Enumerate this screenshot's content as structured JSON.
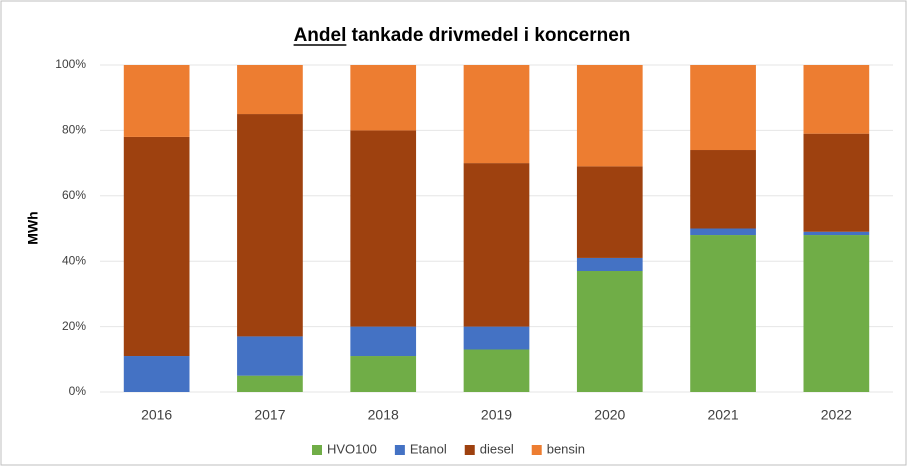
{
  "chart_data": {
    "type": "stacked_bar",
    "title": "Andel tankade drivmedel i koncernen",
    "y_label": "MWh",
    "categories": [
      "2016",
      "2017",
      "2018",
      "2019",
      "2020",
      "2021",
      "2022"
    ],
    "series": [
      {
        "name": "HVO100",
        "color": "#70ad47",
        "values": [
          0,
          5,
          11,
          13,
          37,
          48,
          48
        ]
      },
      {
        "name": "Etanol",
        "color": "#4472c4",
        "values": [
          11,
          12,
          9,
          7,
          4,
          2,
          1
        ]
      },
      {
        "name": "diesel",
        "color": "#9e410f",
        "values": [
          67,
          68,
          60,
          50,
          28,
          24,
          30
        ]
      },
      {
        "name": "bensin",
        "color": "#ed7d31",
        "values": [
          22,
          15,
          20,
          30,
          31,
          26,
          21
        ]
      }
    ],
    "ylim": [
      0,
      100
    ],
    "yticks": [
      {
        "value": 0,
        "label": "0%"
      },
      {
        "value": 20,
        "label": "20%"
      },
      {
        "value": 40,
        "label": "40%"
      },
      {
        "value": 60,
        "label": "60%"
      },
      {
        "value": 80,
        "label": "80%"
      },
      {
        "value": 100,
        "label": "100%"
      }
    ],
    "grid": true,
    "legend": "bottom"
  }
}
